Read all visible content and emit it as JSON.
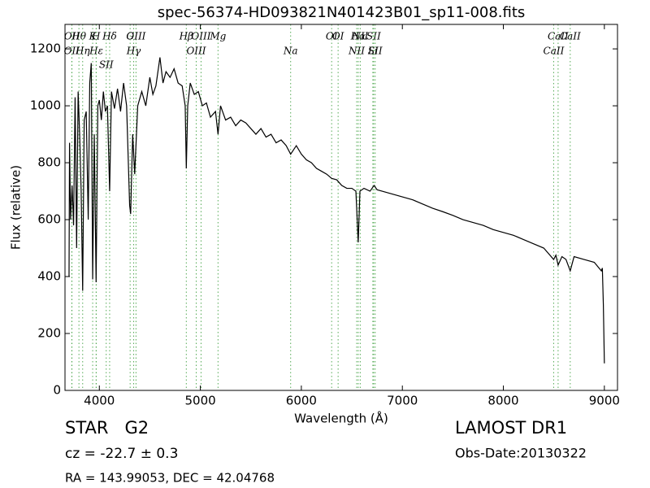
{
  "chart_data": {
    "type": "line",
    "title": "spec-56374-HD093821N401423B01_sp11-008.fits",
    "x_label": "Wavelength (Å)",
    "y_label": "Flux (relative)",
    "color": "#000000",
    "marker_color": "#55aa55",
    "xlim": [
      3660,
      9130
    ],
    "ylim": [
      0,
      1286
    ],
    "xticks": [
      4000,
      5000,
      6000,
      7000,
      8000,
      9000
    ],
    "yticks": [
      0,
      200,
      400,
      600,
      800,
      1000,
      1200
    ],
    "x": [
      3700,
      3705,
      3715,
      3730,
      3745,
      3760,
      3775,
      3790,
      3805,
      3820,
      3835,
      3850,
      3870,
      3890,
      3905,
      3920,
      3934,
      3950,
      3968,
      3985,
      4000,
      4020,
      4040,
      4060,
      4080,
      4102,
      4120,
      4150,
      4180,
      4210,
      4240,
      4270,
      4300,
      4310,
      4330,
      4350,
      4380,
      4420,
      4460,
      4500,
      4530,
      4560,
      4600,
      4630,
      4660,
      4700,
      4740,
      4780,
      4820,
      4850,
      4861,
      4875,
      4900,
      4940,
      4980,
      5020,
      5060,
      5100,
      5150,
      5175,
      5200,
      5250,
      5300,
      5350,
      5400,
      5450,
      5500,
      5550,
      5600,
      5650,
      5700,
      5750,
      5800,
      5850,
      5894,
      5950,
      6000,
      6050,
      6100,
      6150,
      6200,
      6250,
      6300,
      6350,
      6400,
      6450,
      6500,
      6540,
      6563,
      6580,
      6620,
      6680,
      6720,
      6750,
      6800,
      6900,
      7000,
      7100,
      7200,
      7300,
      7400,
      7500,
      7600,
      7700,
      7800,
      7900,
      8000,
      8100,
      8200,
      8300,
      8400,
      8498,
      8520,
      8542,
      8580,
      8620,
      8662,
      8700,
      8800,
      8900,
      8970,
      8980,
      8990,
      9000
    ],
    "values": [
      400,
      870,
      600,
      720,
      580,
      1030,
      500,
      1050,
      900,
      700,
      350,
      950,
      980,
      600,
      1080,
      1150,
      390,
      900,
      380,
      1000,
      1020,
      950,
      1050,
      980,
      1000,
      700,
      1050,
      990,
      1060,
      980,
      1080,
      1000,
      650,
      620,
      900,
      760,
      1000,
      1050,
      1000,
      1100,
      1040,
      1070,
      1170,
      1080,
      1120,
      1100,
      1130,
      1080,
      1070,
      1000,
      780,
      1000,
      1080,
      1040,
      1050,
      1000,
      1010,
      960,
      980,
      900,
      1000,
      950,
      960,
      930,
      950,
      940,
      920,
      900,
      920,
      890,
      900,
      870,
      880,
      860,
      830,
      860,
      830,
      810,
      800,
      780,
      770,
      760,
      745,
      740,
      720,
      710,
      710,
      700,
      520,
      700,
      710,
      700,
      720,
      705,
      700,
      690,
      680,
      670,
      655,
      640,
      628,
      615,
      600,
      590,
      580,
      565,
      555,
      545,
      530,
      515,
      500,
      460,
      475,
      440,
      470,
      460,
      420,
      470,
      460,
      450,
      420,
      430,
      300,
      95
    ],
    "spectral_lines": [
      {
        "label": "Hθ",
        "wavelength": 3798
      },
      {
        "label": "K",
        "wavelength": 3934
      },
      {
        "label": "Hδ",
        "wavelength": 4102
      },
      {
        "label": "OIII",
        "wavelength": 4363
      },
      {
        "label": "OIII",
        "wavelength": 5007
      },
      {
        "label": "OI",
        "wavelength": 6300
      },
      {
        "label": "Hα",
        "wavelength": 6563
      },
      {
        "label": "SII",
        "wavelength": 6716
      },
      {
        "label": "CaII",
        "wavelength": 8542
      },
      {
        "label": "OII",
        "wavelength": 3727
      },
      {
        "label": "Hε",
        "wavelength": 3970
      },
      {
        "label": "SII",
        "wavelength": 4068
      },
      {
        "label": "Hγ",
        "wavelength": 4340
      },
      {
        "label": "OIII",
        "wavelength": 4959
      },
      {
        "label": "Na",
        "wavelength": 5894
      },
      {
        "label": "NII",
        "wavelength": 6548
      },
      {
        "label": "Li",
        "wavelength": 6708
      },
      {
        "label": "CaII",
        "wavelength": 8498
      },
      {
        "label": "OII",
        "wavelength": 3729
      },
      {
        "label": "Hη",
        "wavelength": 3835
      },
      {
        "label": "H",
        "wavelength": 3968
      },
      {
        "label": "G",
        "wavelength": 4305
      },
      {
        "label": "Hβ",
        "wavelength": 4861
      },
      {
        "label": "Mg",
        "wavelength": 5175
      },
      {
        "label": "OI",
        "wavelength": 6364
      },
      {
        "label": "NII",
        "wavelength": 6583
      },
      {
        "label": "SII",
        "wavelength": 6731
      },
      {
        "label": "CaII",
        "wavelength": 8662
      }
    ],
    "annotations": [
      "STAR   G2",
      "cz = -22.7 ± 0.3",
      "RA = 143.99053, DEC = 42.04768",
      "LAMOST DR1",
      "Obs-Date:20130322"
    ]
  }
}
